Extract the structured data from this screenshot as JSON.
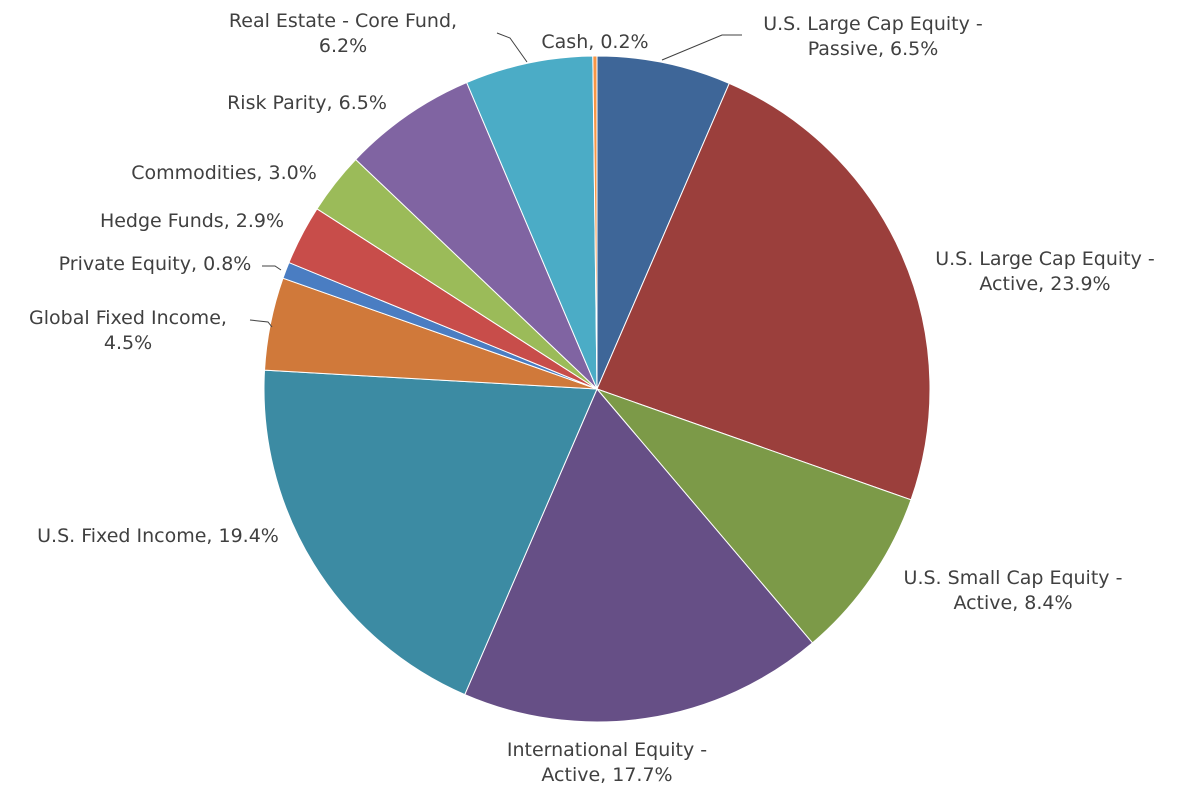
{
  "chart_data": {
    "type": "pie",
    "title": "",
    "start_angle_deg": 0,
    "direction": "clockwise",
    "slices": [
      {
        "name": "U.S. Large Cap Equity - Passive",
        "value": 6.5,
        "label_lines": [
          "U.S. Large Cap Equity -",
          "Passive, 6.5%"
        ],
        "color": "#3E6698"
      },
      {
        "name": "U.S. Large Cap Equity - Active",
        "value": 23.9,
        "label_lines": [
          "U.S. Large Cap Equity -",
          "Active, 23.9%"
        ],
        "color": "#9B3F3C"
      },
      {
        "name": "U.S. Small Cap Equity - Active",
        "value": 8.4,
        "label_lines": [
          "U.S. Small Cap Equity -",
          "Active, 8.4%"
        ],
        "color": "#7C9A48"
      },
      {
        "name": "International Equity - Active",
        "value": 17.7,
        "label_lines": [
          "International Equity -",
          "Active, 17.7%"
        ],
        "color": "#664F86"
      },
      {
        "name": "U.S. Fixed Income",
        "value": 19.4,
        "label_lines": [
          "U.S. Fixed Income, 19.4%"
        ],
        "color": "#3C8BA3"
      },
      {
        "name": "Global Fixed Income",
        "value": 4.5,
        "label_lines": [
          "Global Fixed Income,",
          "4.5%"
        ],
        "color": "#D0793A"
      },
      {
        "name": "Private Equity",
        "value": 0.8,
        "label_lines": [
          "Private Equity, 0.8%"
        ],
        "color": "#4A7DC2"
      },
      {
        "name": "Hedge Funds",
        "value": 2.9,
        "label_lines": [
          "Hedge Funds, 2.9%"
        ],
        "color": "#C84D4A"
      },
      {
        "name": "Commodities",
        "value": 3.0,
        "label_lines": [
          "Commodities, 3.0%"
        ],
        "color": "#9BBB59"
      },
      {
        "name": "Risk Parity",
        "value": 6.5,
        "label_lines": [
          "Risk Parity, 6.5%"
        ],
        "color": "#8064A2"
      },
      {
        "name": "Real Estate - Core Fund",
        "value": 6.2,
        "label_lines": [
          "Real Estate - Core Fund,",
          "6.2%"
        ],
        "color": "#4BACC6"
      },
      {
        "name": "Cash",
        "value": 0.2,
        "label_lines": [
          "Cash, 0.2%"
        ],
        "color": "#F79646"
      }
    ]
  }
}
